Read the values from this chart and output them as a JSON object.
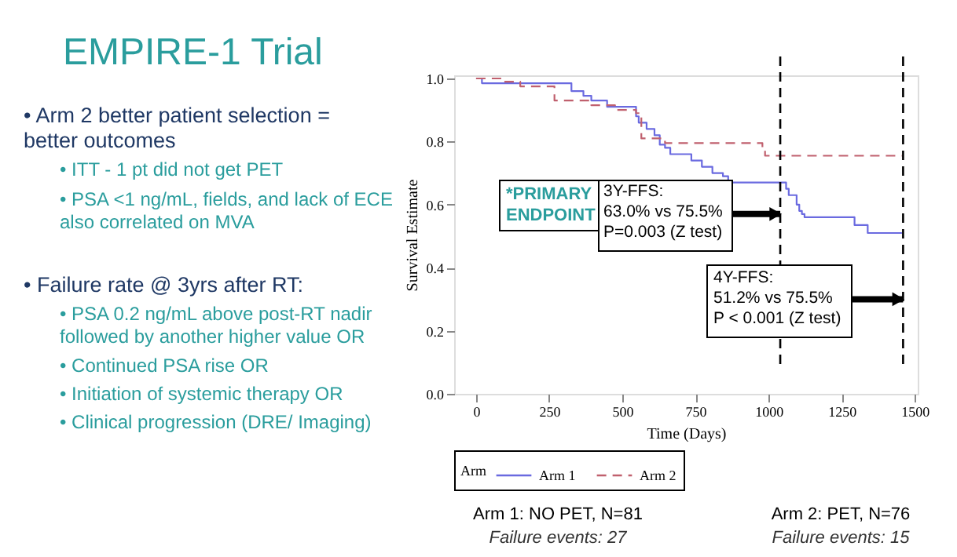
{
  "chart_data": {
    "type": "step",
    "title": "EMPIRE-1 Trial",
    "xlabel": "Time (Days)",
    "ylabel": "Survival Estimate",
    "legend_title": "Arm",
    "legend": "bottom",
    "grid": false,
    "xlim": [
      -75,
      1510
    ],
    "xticks": [
      0,
      250,
      500,
      750,
      1000,
      1250,
      1500
    ],
    "ylim": [
      0,
      1.01
    ],
    "yticks": [
      {
        "value": 0,
        "label": "0.0"
      },
      {
        "value": 0.2,
        "label": "0.2"
      },
      {
        "value": 0.4,
        "label": "0.4"
      },
      {
        "value": 0.6,
        "label": "0.6"
      },
      {
        "value": 0.8,
        "label": "0.8"
      },
      {
        "value": 1,
        "label": "1.0"
      }
    ],
    "series": [
      {
        "name": "Arm 1",
        "color": "#6a6ae0",
        "line_style": "solid",
        "x": [
          0,
          20,
          326,
          367,
          394,
          448,
          547,
          556,
          583,
          610,
          628,
          646,
          664,
          736,
          772,
          808,
          844,
          862,
          1060,
          1069,
          1096,
          1105,
          1114,
          1123,
          1294,
          1339,
          1456
        ],
        "values": [
          1.0,
          0.985,
          0.96,
          0.945,
          0.93,
          0.91,
          0.88,
          0.86,
          0.84,
          0.82,
          0.79,
          0.78,
          0.76,
          0.74,
          0.72,
          0.7,
          0.69,
          0.67,
          0.65,
          0.63,
          0.6,
          0.58,
          0.57,
          0.56,
          0.535,
          0.51,
          0.51
        ]
      },
      {
        "name": "Arm 2",
        "color": "#c0606e",
        "line_style": "dashed",
        "x": [
          0,
          88,
          151,
          268,
          394,
          475,
          547,
          565,
          646,
          979,
          988,
          1456
        ],
        "values": [
          1.0,
          0.99,
          0.975,
          0.93,
          0.915,
          0.9,
          0.89,
          0.81,
          0.795,
          0.78,
          0.755,
          0.755
        ]
      }
    ],
    "ref_lines": [
      {
        "axis": "x",
        "value": 1040,
        "color": "#000000",
        "line_style": "dashed"
      },
      {
        "axis": "x",
        "value": 1460,
        "color": "#000000",
        "line_style": "dashed"
      }
    ],
    "annotations": [
      "• Arm 2 better patient selection =\n   better outcomes",
      "• ITT - 1 pt did not get PET",
      "• PSA <1 ng/mL, fields, and lack of ECE\n   also correlated on MVA",
      "• Failure rate @ 3yrs after RT:",
      "• PSA 0.2 ng/mL above post-RT nadir\n   followed by another higher value OR",
      "• Continued PSA rise OR",
      "• Initiation of systemic therapy OR",
      "• Clinical progression (DRE/ Imaging)",
      "*PRIMARY\nENDPOINT",
      {
        "text": "3Y-FFS:\n63.0% vs 75.5%\nP=0.003 (Z test)",
        "x": 1040,
        "y": 0.57
      },
      {
        "text": "4Y-FFS:\n51.2% vs 75.5%\nP < 0.001 (Z test)",
        "x": 1460,
        "y": 0.3
      },
      "Arm 1: NO PET, N=81",
      "Failure events: 27",
      "Arm 2: PET, N=76",
      "Failure events: 15"
    ]
  }
}
